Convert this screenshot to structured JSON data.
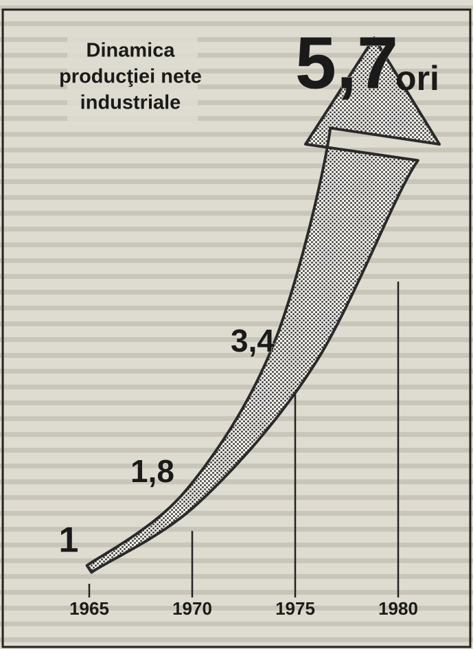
{
  "chart_data": {
    "type": "arrow",
    "title": [
      "Dinamica",
      "producţiei nete",
      "industriale"
    ],
    "x": [
      1965,
      1970,
      1975,
      1980
    ],
    "values": [
      1,
      1.8,
      3.4,
      5.7
    ],
    "value_labels": [
      "1",
      "1,8",
      "3,4",
      "5,7"
    ],
    "unit": "ori",
    "color": "#2a2a2a"
  }
}
